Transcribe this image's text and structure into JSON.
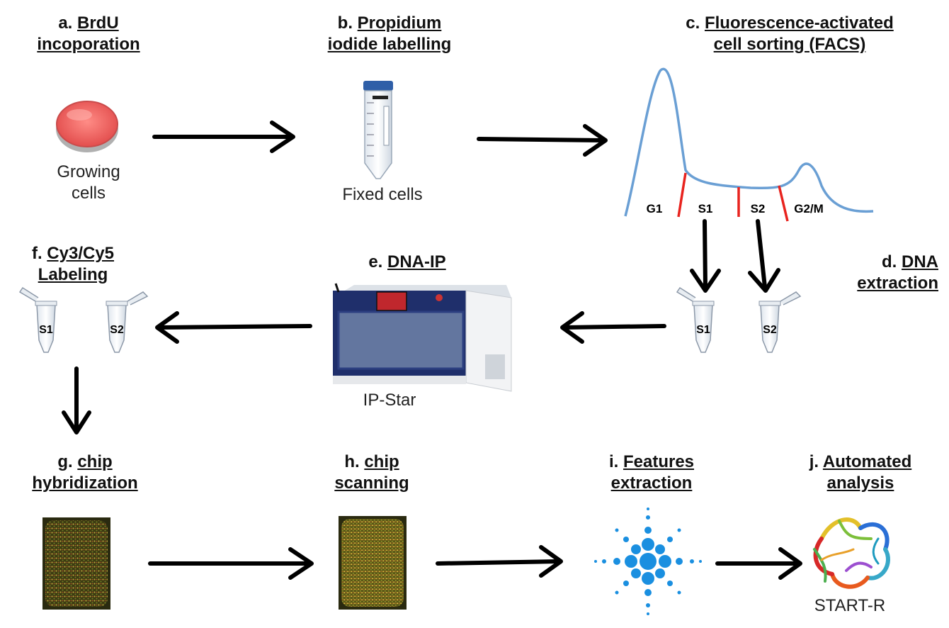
{
  "steps": {
    "a": {
      "prefix": "a.",
      "line1": "BrdU",
      "line2": "incoporation",
      "caption1": "Growing",
      "caption2": "cells"
    },
    "b": {
      "prefix": "b.",
      "line1": "Propidium",
      "line2": "iodide labelling",
      "caption": "Fixed cells"
    },
    "c": {
      "prefix": "c.",
      "line1": "Fluorescence-activated",
      "line2": "cell sorting (FACS)"
    },
    "d": {
      "prefix": "d.",
      "line1": "DNA",
      "line2": "extraction"
    },
    "e": {
      "prefix": "e.",
      "line1": "DNA-IP",
      "caption": "IP-Star"
    },
    "f": {
      "prefix": "f.",
      "line1": "Cy3/Cy5",
      "line2": "Labeling"
    },
    "g": {
      "prefix": "g.",
      "line1": "chip",
      "line2": "hybridization"
    },
    "h": {
      "prefix": "h.",
      "line1": "chip",
      "line2": "scanning"
    },
    "i": {
      "prefix": "i.",
      "line1": "Features",
      "line2": "extraction"
    },
    "j": {
      "prefix": "j.",
      "line1": "Automated",
      "line2": "analysis",
      "caption": "START-R"
    }
  },
  "facs_phases": [
    "G1",
    "S1",
    "S2",
    "G2/M"
  ],
  "tube_labels": {
    "s1": "S1",
    "s2": "S2"
  },
  "colors": {
    "curve": "#6a9fd4",
    "gate": "#e8231e",
    "arrow": "#000000",
    "dish": "#f06a6a",
    "agilent": "#1a8fe0"
  }
}
